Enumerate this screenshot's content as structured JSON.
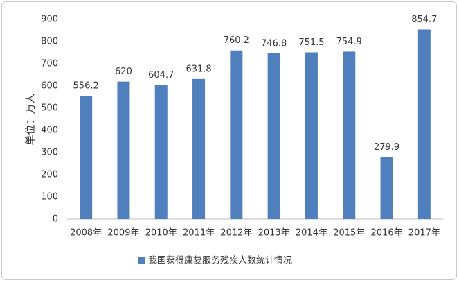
{
  "chart_data": {
    "type": "bar",
    "y_label": "单位：万人",
    "categories": [
      "2008年",
      "2009年",
      "2010年",
      "2011年",
      "2012年",
      "2013年",
      "2014年",
      "2015年",
      "2016年",
      "2017年"
    ],
    "series": [
      {
        "name": "我国获得康复服务残疾人数统计情况",
        "color": "#4f7fbc",
        "values": [
          556.2,
          620,
          604.7,
          631.8,
          760.2,
          746.8,
          751.5,
          754.9,
          279.9,
          854.7
        ]
      }
    ],
    "ylim": [
      0,
      900
    ],
    "yticks": [
      0,
      100,
      200,
      300,
      400,
      500,
      600,
      700,
      800,
      900
    ],
    "grid": false,
    "legend": "bottom"
  }
}
